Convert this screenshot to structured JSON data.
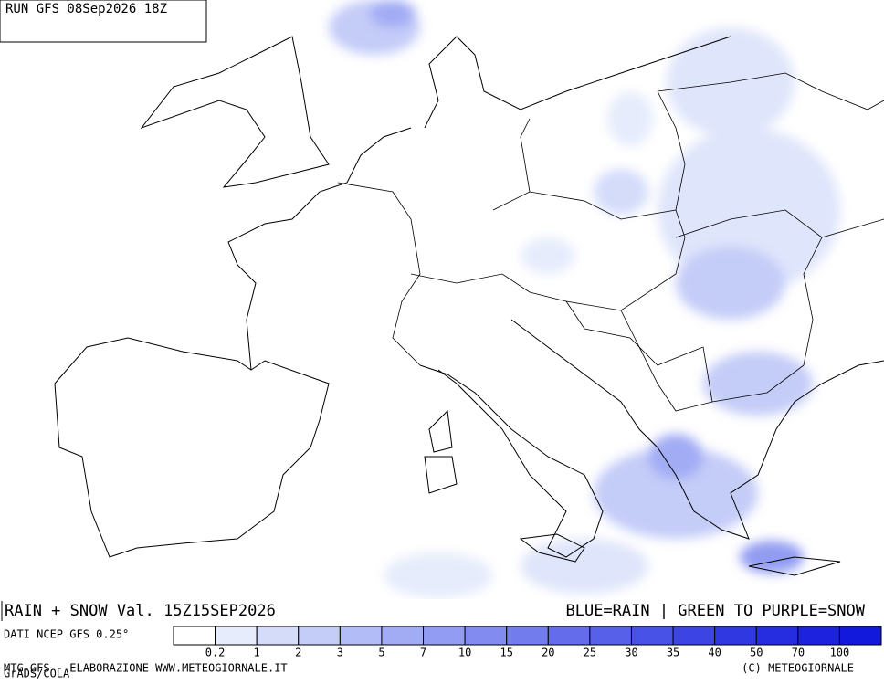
{
  "header": {
    "run": "RUN GFS 08Sep2026 18Z"
  },
  "caption": {
    "field": "RAIN + SNOW Val. 15Z15SEP2026",
    "key": "BLUE=RAIN | GREEN TO PURPLE=SNOW"
  },
  "legend": {
    "source": "DATI NCEP GFS 0.25°",
    "colors": [
      "#ffffff",
      "#e6ecfc",
      "#d4dcfa",
      "#c4ccf8",
      "#b2bcf6",
      "#a2acf4",
      "#929cf2",
      "#828cf0",
      "#727ced",
      "#646ceb",
      "#5660e9",
      "#4852e6",
      "#3c44e4",
      "#3038e2",
      "#262ce0",
      "#1c22de",
      "#1218dc"
    ],
    "labels": [
      "0.2",
      "1",
      "2",
      "3",
      "5",
      "7",
      "10",
      "15",
      "20",
      "25",
      "30",
      "35",
      "40",
      "50",
      "70",
      "100"
    ]
  },
  "footer": {
    "credit": "MTG-GFS - ELABORAZIONE WWW.METEOGIORNALE.IT",
    "copyright": "(C) METEOGIORNALE",
    "software": "GrADS/COLA"
  }
}
